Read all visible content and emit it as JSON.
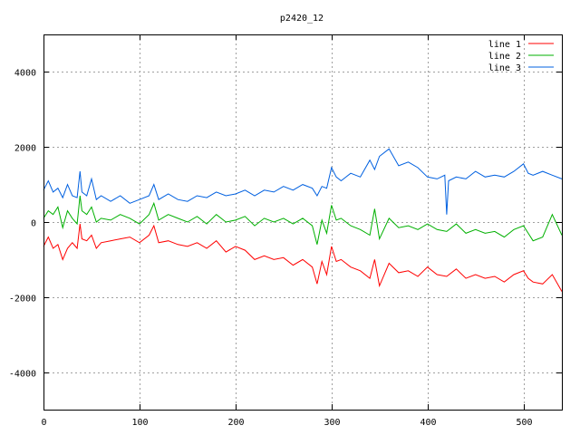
{
  "chart_data": {
    "type": "line",
    "title": "p2420_12",
    "xlabel": "",
    "ylabel": "",
    "xlim": [
      0,
      540
    ],
    "ylim": [
      -5000,
      5000
    ],
    "xticks": [
      0,
      100,
      200,
      300,
      400,
      500
    ],
    "yticks": [
      -4000,
      -2000,
      0,
      2000,
      4000
    ],
    "grid": true,
    "legend_position": "top-right",
    "series": [
      {
        "name": "line 1",
        "color": "#ff0000",
        "x": [
          0,
          5,
          10,
          15,
          20,
          25,
          30,
          35,
          38,
          40,
          45,
          50,
          55,
          60,
          70,
          80,
          90,
          100,
          110,
          115,
          120,
          130,
          140,
          150,
          160,
          170,
          180,
          190,
          200,
          210,
          220,
          230,
          240,
          250,
          260,
          270,
          280,
          285,
          290,
          295,
          300,
          305,
          310,
          320,
          330,
          340,
          345,
          350,
          360,
          370,
          380,
          390,
          400,
          410,
          420,
          430,
          440,
          450,
          460,
          470,
          480,
          490,
          500,
          505,
          510,
          520,
          530,
          540
        ],
        "y": [
          -650,
          -400,
          -700,
          -600,
          -1000,
          -700,
          -550,
          -700,
          -50,
          -450,
          -500,
          -350,
          -700,
          -550,
          -500,
          -450,
          -400,
          -550,
          -350,
          -100,
          -550,
          -500,
          -600,
          -650,
          -550,
          -700,
          -500,
          -800,
          -650,
          -750,
          -1000,
          -900,
          -1000,
          -950,
          -1150,
          -1000,
          -1200,
          -1650,
          -1050,
          -1400,
          -650,
          -1050,
          -1000,
          -1200,
          -1300,
          -1500,
          -1000,
          -1700,
          -1100,
          -1350,
          -1300,
          -1450,
          -1200,
          -1400,
          -1450,
          -1250,
          -1500,
          -1400,
          -1500,
          -1450,
          -1600,
          -1400,
          -1300,
          -1500,
          -1600,
          -1650,
          -1400,
          -1850
        ]
      },
      {
        "name": "line 2",
        "color": "#00b000",
        "x": [
          0,
          5,
          10,
          15,
          20,
          25,
          30,
          35,
          38,
          40,
          45,
          50,
          55,
          60,
          70,
          80,
          90,
          100,
          110,
          115,
          120,
          130,
          140,
          150,
          160,
          170,
          180,
          190,
          200,
          210,
          220,
          230,
          240,
          250,
          260,
          270,
          280,
          285,
          290,
          295,
          300,
          305,
          310,
          320,
          330,
          340,
          345,
          350,
          360,
          370,
          380,
          390,
          400,
          410,
          420,
          430,
          440,
          450,
          460,
          470,
          480,
          490,
          500,
          505,
          510,
          520,
          530,
          540
        ],
        "y": [
          100,
          300,
          200,
          400,
          -150,
          300,
          100,
          -50,
          700,
          300,
          200,
          400,
          0,
          100,
          50,
          200,
          100,
          -50,
          200,
          500,
          50,
          200,
          100,
          0,
          150,
          -50,
          200,
          0,
          50,
          150,
          -100,
          100,
          0,
          100,
          -50,
          100,
          -100,
          -600,
          50,
          -300,
          450,
          50,
          100,
          -100,
          -200,
          -350,
          350,
          -450,
          100,
          -150,
          -100,
          -200,
          -50,
          -200,
          -250,
          -50,
          -300,
          -200,
          -300,
          -250,
          -400,
          -200,
          -100,
          -300,
          -500,
          -400,
          200,
          -350
        ]
      },
      {
        "name": "line 3",
        "color": "#0060e0",
        "x": [
          0,
          5,
          10,
          15,
          20,
          25,
          30,
          35,
          38,
          40,
          45,
          50,
          55,
          60,
          70,
          80,
          90,
          100,
          110,
          115,
          120,
          130,
          140,
          150,
          160,
          170,
          180,
          190,
          200,
          210,
          220,
          230,
          240,
          250,
          260,
          270,
          280,
          285,
          290,
          295,
          300,
          305,
          310,
          320,
          330,
          340,
          345,
          350,
          360,
          370,
          380,
          390,
          400,
          410,
          418,
          420,
          422,
          430,
          440,
          450,
          460,
          470,
          480,
          490,
          500,
          505,
          510,
          520,
          530,
          540
        ],
        "y": [
          850,
          1100,
          800,
          900,
          650,
          1000,
          700,
          650,
          1350,
          800,
          700,
          1150,
          600,
          700,
          550,
          700,
          500,
          600,
          700,
          1000,
          600,
          750,
          600,
          550,
          700,
          650,
          800,
          700,
          750,
          850,
          700,
          850,
          800,
          950,
          850,
          1000,
          900,
          700,
          950,
          900,
          1450,
          1200,
          1100,
          1300,
          1200,
          1650,
          1400,
          1750,
          1950,
          1500,
          1600,
          1450,
          1200,
          1150,
          1250,
          200,
          1100,
          1200,
          1150,
          1350,
          1200,
          1250,
          1200,
          1350,
          1550,
          1300,
          1250,
          1350,
          1250,
          1150
        ]
      }
    ]
  }
}
